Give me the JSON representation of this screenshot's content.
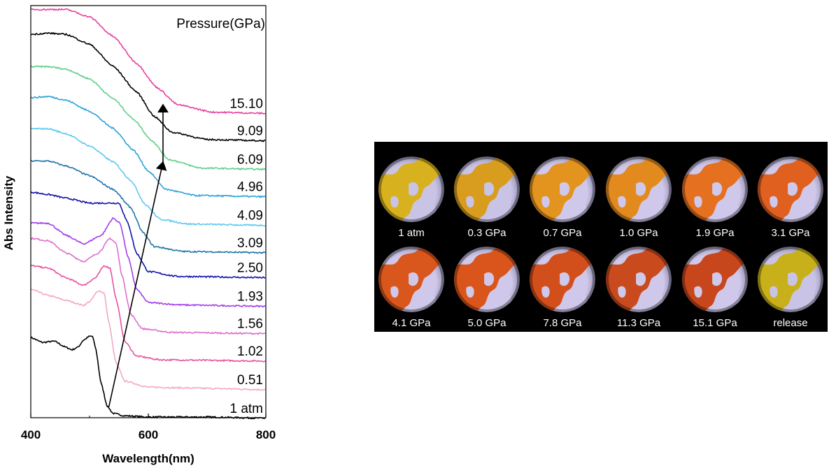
{
  "chart_data": {
    "type": "line",
    "subtype": "stacked UV-vis absorption spectra",
    "xlabel": "Wavelength(nm)",
    "ylabel": "Abs Intensity",
    "xlim": [
      400,
      800
    ],
    "xticks": [
      "400",
      "600",
      "800"
    ],
    "legend_title": "Pressure(GPa)",
    "series": [
      {
        "name": "1 atm",
        "color": "#000000",
        "offset": 0,
        "edge_nm": 510,
        "points": [
          [
            400,
            0.68
          ],
          [
            420,
            0.64
          ],
          [
            440,
            0.65
          ],
          [
            460,
            0.6
          ],
          [
            470,
            0.58
          ],
          [
            480,
            0.6
          ],
          [
            490,
            0.66
          ],
          [
            500,
            0.69
          ],
          [
            505,
            0.69
          ],
          [
            510,
            0.6
          ],
          [
            520,
            0.3
          ],
          [
            530,
            0.12
          ],
          [
            540,
            0.06
          ],
          [
            560,
            0.04
          ],
          [
            600,
            0.03
          ],
          [
            700,
            0.03
          ],
          [
            800,
            0.02
          ]
        ]
      },
      {
        "name": "0.51",
        "color": "#f4a7c8",
        "offset": 1,
        "edge_nm": 532,
        "points": [
          [
            400,
            0.85
          ],
          [
            430,
            0.8
          ],
          [
            460,
            0.76
          ],
          [
            490,
            0.72
          ],
          [
            500,
            0.75
          ],
          [
            515,
            0.84
          ],
          [
            525,
            0.82
          ],
          [
            532,
            0.6
          ],
          [
            545,
            0.25
          ],
          [
            560,
            0.1
          ],
          [
            600,
            0.05
          ],
          [
            700,
            0.04
          ],
          [
            800,
            0.03
          ]
        ]
      },
      {
        "name": "1.02",
        "color": "#e8519e",
        "offset": 2,
        "edge_nm": 540,
        "points": [
          [
            400,
            0.82
          ],
          [
            430,
            0.8
          ],
          [
            460,
            0.72
          ],
          [
            490,
            0.66
          ],
          [
            510,
            0.72
          ],
          [
            525,
            0.82
          ],
          [
            535,
            0.8
          ],
          [
            545,
            0.55
          ],
          [
            560,
            0.2
          ],
          [
            580,
            0.08
          ],
          [
            620,
            0.05
          ],
          [
            800,
            0.04
          ]
        ]
      },
      {
        "name": "1.56",
        "color": "#dd6fce",
        "offset": 3,
        "edge_nm": 548,
        "points": [
          [
            400,
            0.82
          ],
          [
            430,
            0.8
          ],
          [
            460,
            0.7
          ],
          [
            490,
            0.63
          ],
          [
            515,
            0.7
          ],
          [
            535,
            0.82
          ],
          [
            545,
            0.78
          ],
          [
            555,
            0.52
          ],
          [
            570,
            0.2
          ],
          [
            590,
            0.08
          ],
          [
            640,
            0.05
          ],
          [
            800,
            0.04
          ]
        ]
      },
      {
        "name": "1.93",
        "color": "#a23ee8",
        "offset": 4,
        "edge_nm": 556,
        "points": [
          [
            400,
            0.72
          ],
          [
            430,
            0.72
          ],
          [
            460,
            0.62
          ],
          [
            490,
            0.55
          ],
          [
            520,
            0.62
          ],
          [
            540,
            0.76
          ],
          [
            552,
            0.72
          ],
          [
            565,
            0.45
          ],
          [
            580,
            0.18
          ],
          [
            600,
            0.07
          ],
          [
            660,
            0.05
          ],
          [
            800,
            0.04
          ]
        ]
      },
      {
        "name": "2.50",
        "color": "#1111aa",
        "offset": 5,
        "edge_nm": 565,
        "points": [
          [
            400,
            0.75
          ],
          [
            430,
            0.73
          ],
          [
            460,
            0.7
          ],
          [
            500,
            0.66
          ],
          [
            530,
            0.66
          ],
          [
            550,
            0.66
          ],
          [
            565,
            0.5
          ],
          [
            580,
            0.25
          ],
          [
            600,
            0.1
          ],
          [
            650,
            0.06
          ],
          [
            800,
            0.05
          ]
        ]
      },
      {
        "name": "3.09",
        "color": "#1f74a8",
        "offset": 6,
        "edge_nm": 575,
        "points": [
          [
            400,
            0.78
          ],
          [
            430,
            0.78
          ],
          [
            460,
            0.74
          ],
          [
            500,
            0.66
          ],
          [
            540,
            0.55
          ],
          [
            570,
            0.4
          ],
          [
            590,
            0.2
          ],
          [
            610,
            0.08
          ],
          [
            660,
            0.04
          ],
          [
            800,
            0.03
          ]
        ]
      },
      {
        "name": "4.09",
        "color": "#5ec8f2",
        "offset": 7,
        "edge_nm": 580,
        "points": [
          [
            400,
            0.82
          ],
          [
            430,
            0.82
          ],
          [
            460,
            0.78
          ],
          [
            500,
            0.68
          ],
          [
            540,
            0.55
          ],
          [
            570,
            0.4
          ],
          [
            595,
            0.2
          ],
          [
            620,
            0.08
          ],
          [
            670,
            0.04
          ],
          [
            800,
            0.03
          ]
        ]
      },
      {
        "name": "4.96",
        "color": "#2ca1d8",
        "offset": 8,
        "edge_nm": 588,
        "points": [
          [
            400,
            0.85
          ],
          [
            430,
            0.86
          ],
          [
            460,
            0.83
          ],
          [
            500,
            0.74
          ],
          [
            540,
            0.6
          ],
          [
            575,
            0.42
          ],
          [
            600,
            0.25
          ],
          [
            630,
            0.1
          ],
          [
            680,
            0.05
          ],
          [
            800,
            0.04
          ]
        ]
      },
      {
        "name": "6.09",
        "color": "#5fcf8a",
        "offset": 9,
        "edge_nm": 595,
        "points": [
          [
            400,
            0.88
          ],
          [
            430,
            0.88
          ],
          [
            460,
            0.86
          ],
          [
            500,
            0.78
          ],
          [
            540,
            0.62
          ],
          [
            575,
            0.45
          ],
          [
            605,
            0.28
          ],
          [
            635,
            0.12
          ],
          [
            690,
            0.05
          ],
          [
            800,
            0.04
          ]
        ]
      },
      {
        "name": "9.09",
        "color": "#000000",
        "offset": 10,
        "edge_nm": 600,
        "points": [
          [
            400,
            0.92
          ],
          [
            430,
            0.93
          ],
          [
            460,
            0.92
          ],
          [
            500,
            0.84
          ],
          [
            540,
            0.66
          ],
          [
            580,
            0.45
          ],
          [
            610,
            0.25
          ],
          [
            640,
            0.12
          ],
          [
            700,
            0.06
          ],
          [
            800,
            0.05
          ]
        ]
      },
      {
        "name": "15.10",
        "color": "#ea3f9d",
        "offset": 11,
        "edge_nm": 610,
        "points": [
          [
            400,
            0.9
          ],
          [
            430,
            0.9
          ],
          [
            460,
            0.9
          ],
          [
            500,
            0.84
          ],
          [
            540,
            0.68
          ],
          [
            580,
            0.46
          ],
          [
            615,
            0.26
          ],
          [
            650,
            0.12
          ],
          [
            710,
            0.06
          ],
          [
            800,
            0.05
          ]
        ]
      }
    ],
    "annotations": [
      {
        "type": "arrow",
        "from_series": "1 atm",
        "to_series": "6.09"
      },
      {
        "type": "arrow",
        "from_series": "6.09",
        "to_series": "15.10"
      }
    ]
  },
  "photo_panel": {
    "items": [
      {
        "label": "1 atm",
        "tint": "#d8b21e",
        "bg": "#c9c3e6"
      },
      {
        "label": "0.3 GPa",
        "tint": "#d89d1e",
        "bg": "#c9c3e6"
      },
      {
        "label": "0.7 GPa",
        "tint": "#e3941f",
        "bg": "#cfc8ea"
      },
      {
        "label": "1.0 GPa",
        "tint": "#e38a1f",
        "bg": "#cfc8ea"
      },
      {
        "label": "1.9 GPa",
        "tint": "#e5701f",
        "bg": "#cfc8ea"
      },
      {
        "label": "3.1 GPa",
        "tint": "#e0601f",
        "bg": "#cfc8ea"
      },
      {
        "label": "4.1 GPa",
        "tint": "#d9561c",
        "bg": "#cfc8ea"
      },
      {
        "label": "5.0 GPa",
        "tint": "#d9551c",
        "bg": "#cfc8ea"
      },
      {
        "label": "7.8 GPa",
        "tint": "#d24f1c",
        "bg": "#cfc8ea"
      },
      {
        "label": "11.3 GPa",
        "tint": "#c94a1c",
        "bg": "#cfc8ea"
      },
      {
        "label": "15.1 GPa",
        "tint": "#c8461c",
        "bg": "#cfc8ea"
      },
      {
        "label": "release",
        "tint": "#c8b01a",
        "bg": "#c9c3e6"
      }
    ]
  }
}
